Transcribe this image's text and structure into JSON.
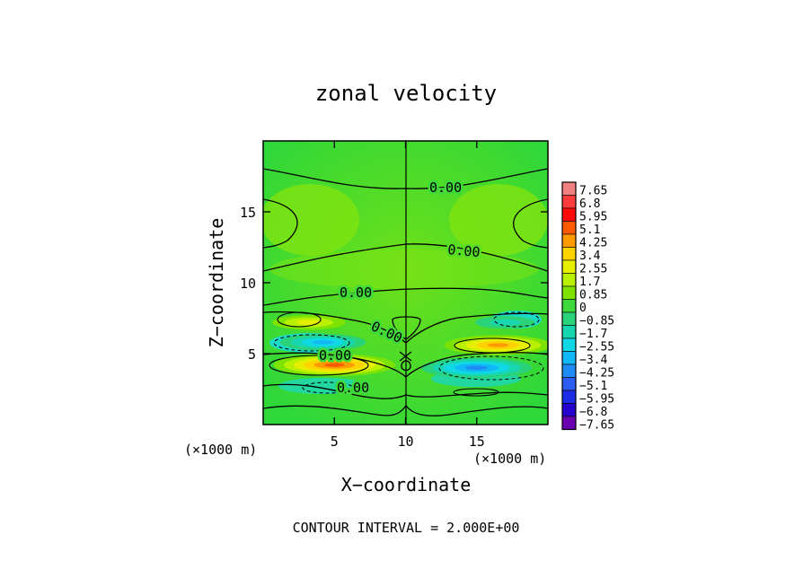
{
  "chart_data": {
    "type": "heatmap",
    "title": "zonal velocity",
    "xlabel": "X−coordinate",
    "ylabel": "Z−coordinate",
    "x_unit_left": "(×1000 m)",
    "x_unit_right": "(×1000 m)",
    "xlim": [
      0,
      20
    ],
    "ylim": [
      0,
      20
    ],
    "xticks": [
      "5",
      "10",
      "15"
    ],
    "yticks": [
      "5",
      "10",
      "15"
    ],
    "footer": "CONTOUR INTERVAL = 2.000E+00",
    "contour_labels": [
      "0.00",
      "0.00",
      "0.00",
      "0.00",
      "0.00",
      "0.00"
    ],
    "colorbar": {
      "labels": [
        "7.65",
        "6.8",
        "5.95",
        "5.1",
        "4.25",
        "3.4",
        "2.55",
        "1.7",
        "0.85",
        "0",
        "−0.85",
        "−1.7",
        "−2.55",
        "−3.4",
        "−4.25",
        "−5.1",
        "−5.95",
        "−6.8",
        "−7.65"
      ],
      "colors": [
        "#f08080",
        "#ff3b3b",
        "#ff0a0a",
        "#ff5a00",
        "#ff9a00",
        "#ffd200",
        "#e8ee00",
        "#b9f000",
        "#7ee300",
        "#3ed93a",
        "#2ad27a",
        "#18d6b0",
        "#10d8e4",
        "#10b8f5",
        "#1f8bf5",
        "#2c5cf0",
        "#1f2ce6",
        "#2600cc",
        "#6a00b0"
      ]
    },
    "features": [
      {
        "kind": "maximum",
        "x": 5,
        "z": 4.2,
        "value": 5.3
      },
      {
        "kind": "maximum",
        "x": 16.5,
        "z": 5.6,
        "value": 4.4
      },
      {
        "kind": "minimum",
        "x": 15,
        "z": 4,
        "value": -4.6
      },
      {
        "kind": "minimum",
        "x": 4.2,
        "z": 5.8,
        "value": -3.1
      },
      {
        "kind": "minimum",
        "x": 17,
        "z": 7.2,
        "value": -1.5
      },
      {
        "kind": "maximum",
        "x": 3.2,
        "z": 7.2,
        "value": 2.3
      }
    ]
  }
}
